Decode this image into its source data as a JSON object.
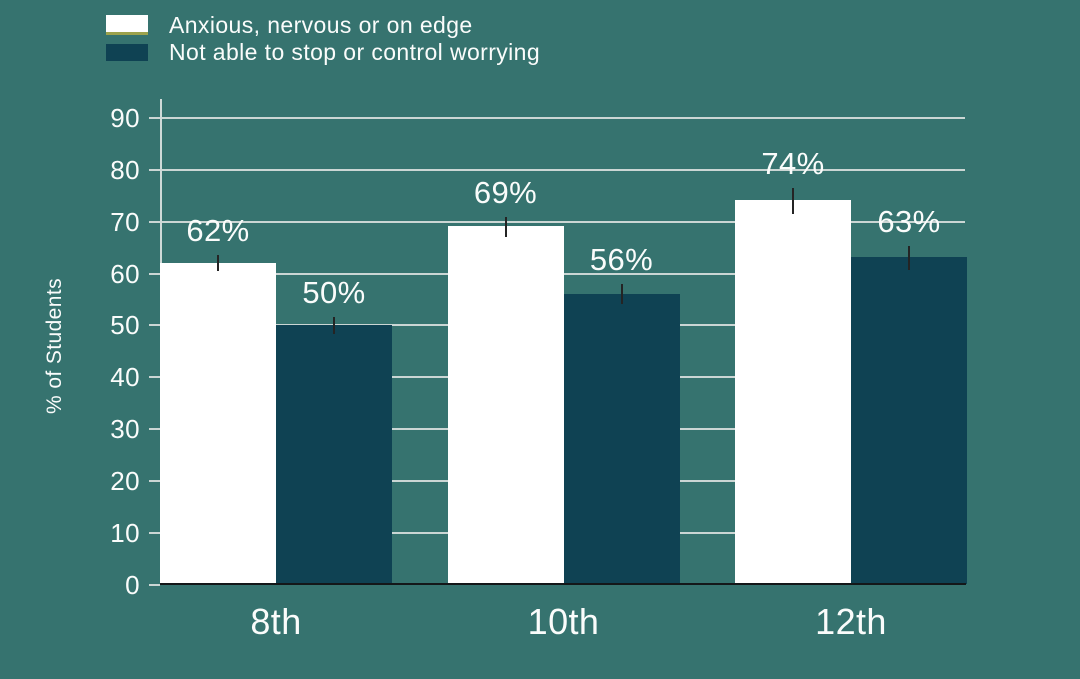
{
  "colors": {
    "background": "#36736F",
    "text": "#FAFCFB",
    "bar_white": "#FFFFFF",
    "bar_dark": "#0F4253",
    "gridline": "#CBD6D4",
    "axis_line": "#CFDAD8",
    "baseline": "#141719",
    "error_bar": "#242424",
    "legend_underline": "#9CA24C"
  },
  "legend": {
    "items": [
      {
        "label": "Anxious, nervous or on edge",
        "swatch_color": "#FFFFFF"
      },
      {
        "label": "Not able to stop or control worrying",
        "swatch_color": "#0F4253"
      }
    ]
  },
  "chart_data": {
    "type": "bar",
    "title": "",
    "ylabel": "% of Students",
    "xlabel": "",
    "categories": [
      "8th",
      "10th",
      "12th"
    ],
    "series": [
      {
        "name": "Anxious, nervous or on edge",
        "color": "#FFFFFF",
        "values": [
          62,
          69,
          74
        ],
        "labels": [
          "62%",
          "69%",
          "74%"
        ],
        "error_half_pct": [
          1.6,
          1.9,
          2.5
        ]
      },
      {
        "name": "Not able to stop or control worrying",
        "color": "#0F4253",
        "values": [
          50,
          56,
          63
        ],
        "labels": [
          "50%",
          "56%",
          "63%"
        ],
        "error_half_pct": [
          1.7,
          1.9,
          2.3
        ]
      }
    ],
    "yticks": [
      0,
      10,
      20,
      30,
      40,
      50,
      60,
      70,
      80,
      90
    ],
    "ylim": [
      0,
      93
    ],
    "grid": true,
    "error_bars": true,
    "legend_position": "top-left"
  }
}
